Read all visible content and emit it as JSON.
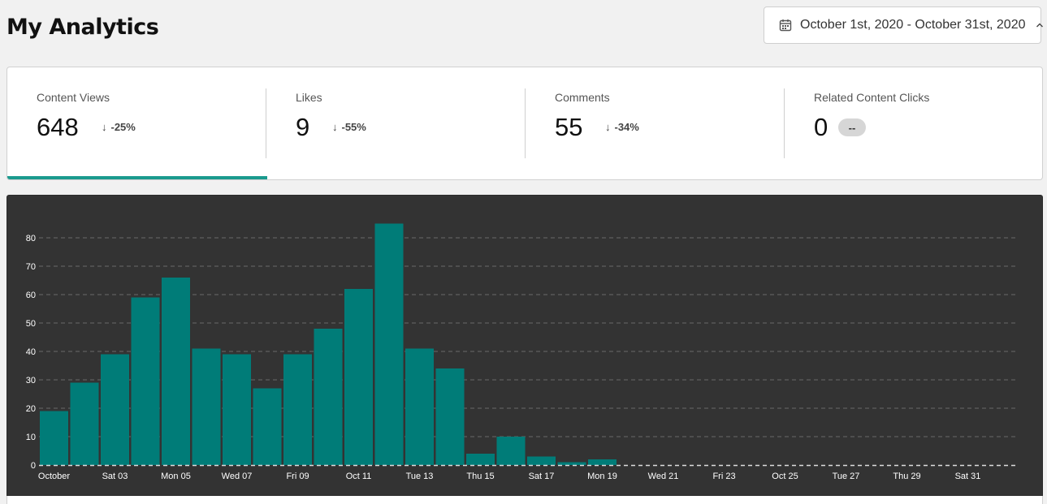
{
  "header": {
    "title": "My Analytics"
  },
  "date_range": {
    "label": "October 1st, 2020 - October 31st, 2020",
    "icon": "calendar-icon",
    "toggle_icon": "chevron-up-icon"
  },
  "stats": [
    {
      "label": "Content Views",
      "value": "648",
      "change": "-25%",
      "direction": "down",
      "active": true
    },
    {
      "label": "Likes",
      "value": "9",
      "change": "-55%",
      "direction": "down",
      "active": false
    },
    {
      "label": "Comments",
      "value": "55",
      "change": "-34%",
      "direction": "down",
      "active": false
    },
    {
      "label": "Related Content Clicks",
      "value": "0",
      "change": "--",
      "direction": "none",
      "active": false
    }
  ],
  "colors": {
    "accent": "#1a9a8e",
    "bar": "#007c78",
    "chart_bg": "#333333",
    "page_bg": "#f1f1f1"
  },
  "chart_data": {
    "type": "bar",
    "title": "",
    "xlabel": "",
    "ylabel": "",
    "ylim": [
      0,
      90
    ],
    "y_ticks": [
      0,
      10,
      20,
      30,
      40,
      50,
      60,
      70,
      80
    ],
    "grid": true,
    "categories": [
      "Oct 01",
      "Oct 02",
      "Oct 03",
      "Oct 04",
      "Oct 05",
      "Oct 06",
      "Oct 07",
      "Oct 08",
      "Oct 09",
      "Oct 10",
      "Oct 11",
      "Oct 12",
      "Oct 13",
      "Oct 14",
      "Oct 15",
      "Oct 16",
      "Oct 17",
      "Oct 18",
      "Oct 19",
      "Oct 20",
      "Oct 21",
      "Oct 22",
      "Oct 23",
      "Oct 24",
      "Oct 25",
      "Oct 26",
      "Oct 27",
      "Oct 28",
      "Oct 29",
      "Oct 30",
      "Oct 31"
    ],
    "values": [
      19,
      29,
      39,
      59,
      66,
      41,
      39,
      27,
      39,
      48,
      62,
      85,
      41,
      34,
      4,
      10,
      3,
      1,
      2,
      0,
      0,
      0,
      0,
      0,
      0,
      0,
      0,
      0,
      0,
      0,
      0
    ],
    "x_tick_labels": [
      {
        "index": 0,
        "label": "October"
      },
      {
        "index": 2,
        "label": "Sat 03"
      },
      {
        "index": 4,
        "label": "Mon 05"
      },
      {
        "index": 6,
        "label": "Wed 07"
      },
      {
        "index": 8,
        "label": "Fri 09"
      },
      {
        "index": 10,
        "label": "Oct 11"
      },
      {
        "index": 12,
        "label": "Tue 13"
      },
      {
        "index": 14,
        "label": "Thu 15"
      },
      {
        "index": 16,
        "label": "Sat 17"
      },
      {
        "index": 18,
        "label": "Mon 19"
      },
      {
        "index": 20,
        "label": "Wed 21"
      },
      {
        "index": 22,
        "label": "Fri 23"
      },
      {
        "index": 24,
        "label": "Oct 25"
      },
      {
        "index": 26,
        "label": "Tue 27"
      },
      {
        "index": 28,
        "label": "Thu 29"
      },
      {
        "index": 30,
        "label": "Sat 31"
      }
    ]
  }
}
